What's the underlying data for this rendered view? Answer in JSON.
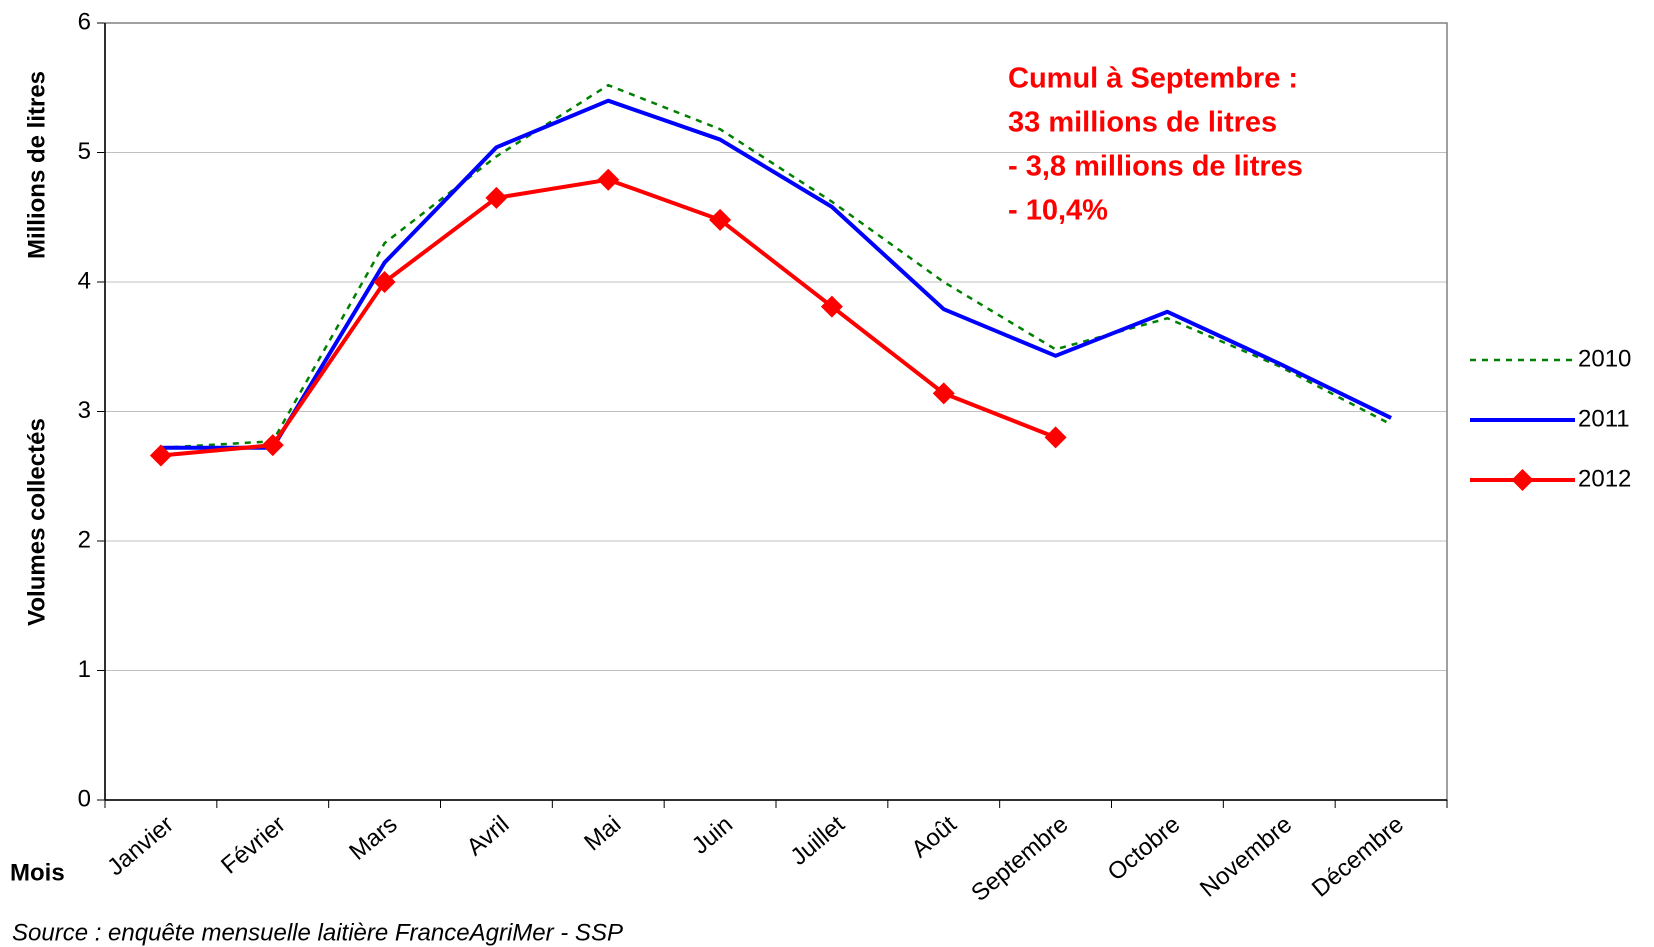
{
  "chart_data": {
    "type": "line",
    "ylabel": "Volumes collectés",
    "yunit": "Millions de litres",
    "xlabel": "Mois",
    "source": "Source : enquête mensuelle laitière FranceAgriMer - SSP",
    "annotation": [
      "Cumul à Septembre :",
      "33 millions de litres",
      "- 3,8 millions de litres",
      "- 10,4%"
    ],
    "annotation_color": "#ff0000",
    "categories": [
      "Janvier",
      "Février",
      "Mars",
      "Avril",
      "Mai",
      "Juin",
      "Juillet",
      "Août",
      "Septembre",
      "Octobre",
      "Novembre",
      "Décembre"
    ],
    "series": [
      {
        "name": "2010",
        "color": "#008000",
        "style": "dotted",
        "values": [
          2.72,
          2.77,
          4.3,
          4.97,
          5.52,
          5.18,
          4.62,
          4.0,
          3.48,
          3.72,
          3.35,
          2.9
        ]
      },
      {
        "name": "2011",
        "color": "#0000ff",
        "style": "solid",
        "values": [
          2.72,
          2.72,
          4.15,
          5.04,
          5.4,
          5.1,
          4.58,
          3.79,
          3.43,
          3.77,
          3.37,
          2.95
        ]
      },
      {
        "name": "2012",
        "color": "#ff0000",
        "style": "solid",
        "marker": "diamond",
        "values": [
          2.66,
          2.74,
          4.0,
          4.65,
          4.79,
          4.48,
          3.81,
          3.14,
          2.8,
          null,
          null,
          null
        ]
      }
    ],
    "ylim": [
      0,
      6
    ],
    "yticks": [
      0,
      1,
      2,
      3,
      4,
      5,
      6
    ],
    "grid": true,
    "legend": "right"
  }
}
